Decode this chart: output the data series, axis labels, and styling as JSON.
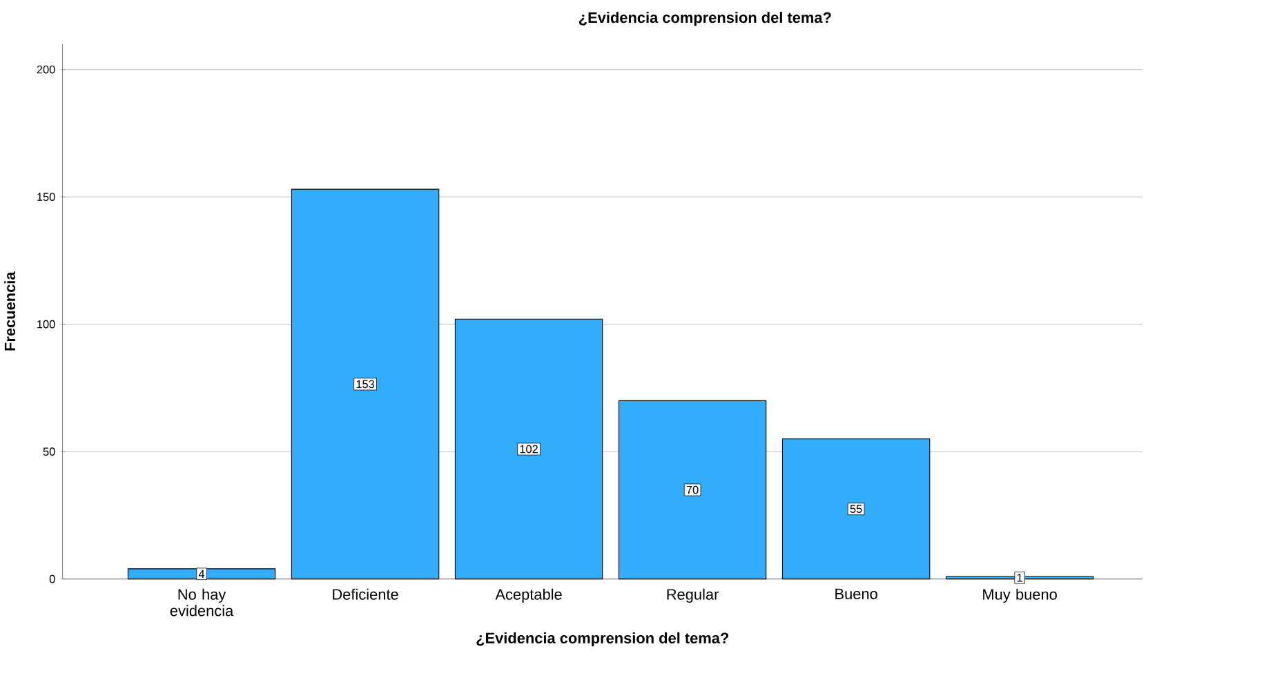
{
  "chart_data": {
    "type": "bar",
    "title": "¿Evidencia comprension del tema?",
    "xlabel": "¿Evidencia comprension del tema?",
    "ylabel": "Frecuencia",
    "categories": [
      "No hay evidencia",
      "Deficiente",
      "Aceptable",
      "Regular",
      "Bueno",
      "Muy bueno"
    ],
    "values": [
      4,
      153,
      102,
      70,
      55,
      1
    ],
    "color": "#32adfb",
    "ylim": [
      0,
      210
    ],
    "yticks": [
      0,
      50,
      100,
      150,
      200
    ],
    "grid": "y",
    "data_labels": true
  }
}
